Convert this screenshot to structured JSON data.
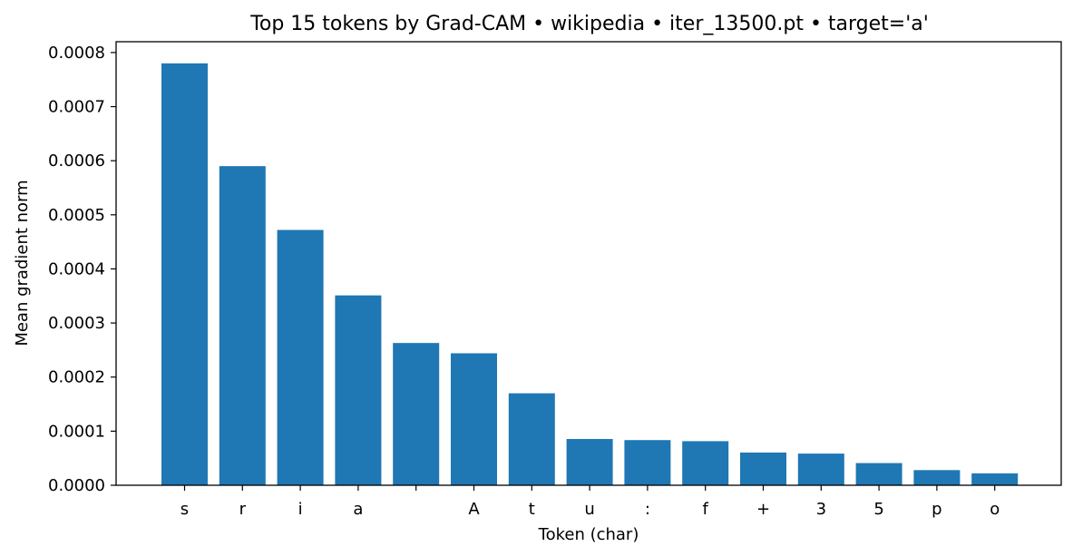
{
  "chart_data": {
    "type": "bar",
    "title": "Top 15 tokens by Grad-CAM • wikipedia • iter_13500.pt • target='a'",
    "xlabel": "Token (char)",
    "ylabel": "Mean gradient norm",
    "categories": [
      "s",
      "r",
      "i",
      "a",
      " ",
      "A",
      "t",
      "u",
      ":",
      "f",
      "+",
      "3",
      "5",
      "p",
      "o"
    ],
    "values": [
      0.00078,
      0.00059,
      0.000472,
      0.000351,
      0.000263,
      0.000244,
      0.00017,
      8.55e-05,
      8.35e-05,
      8.15e-05,
      6.05e-05,
      5.85e-05,
      4.1e-05,
      2.8e-05,
      2.2e-05
    ],
    "ylim": [
      0,
      0.00082
    ],
    "yticks": [
      "0.0000",
      "0.0001",
      "0.0002",
      "0.0003",
      "0.0004",
      "0.0005",
      "0.0006",
      "0.0007",
      "0.0008"
    ],
    "ytick_values": [
      0,
      0.0001,
      0.0002,
      0.0003,
      0.0004,
      0.0005,
      0.0006,
      0.0007,
      0.0008
    ],
    "bar_color": "#1f77b4",
    "grid": false,
    "legend": "none"
  }
}
